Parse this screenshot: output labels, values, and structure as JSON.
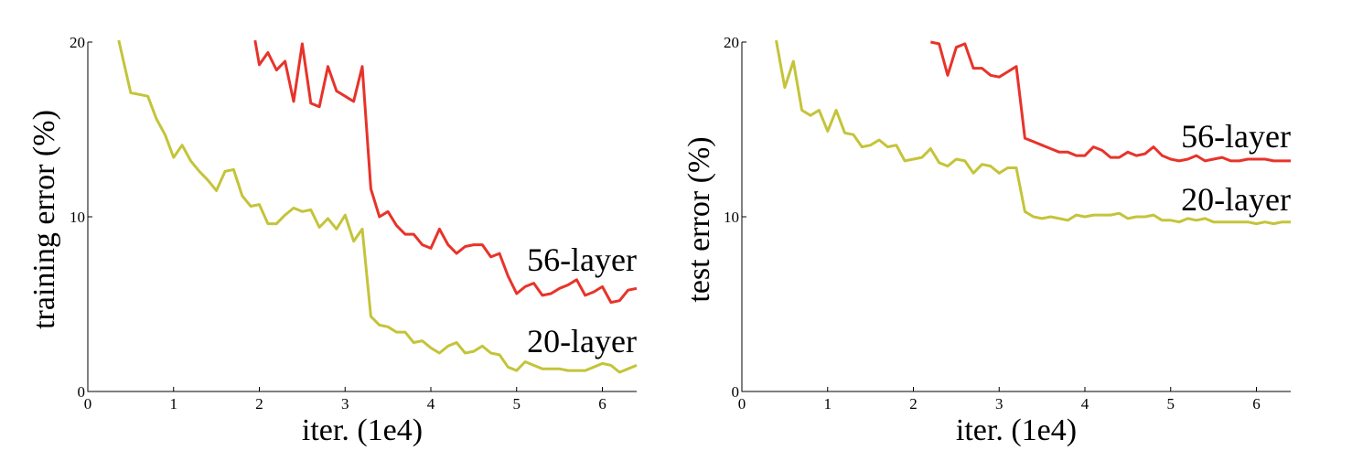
{
  "colors": {
    "layer56": "#e8332a",
    "layer20": "#c4c43a"
  },
  "chart_data": [
    {
      "type": "line",
      "xlabel": "iter. (1e4)",
      "ylabel": "training error (%)",
      "xlim": [
        0,
        6.4
      ],
      "ylim": [
        0,
        20
      ],
      "xticks": [
        "0",
        "1",
        "2",
        "3",
        "4",
        "5",
        "6"
      ],
      "yticks": [
        "0",
        "10",
        "20"
      ],
      "grid": false,
      "series": [
        {
          "name": "56-layer",
          "color_key": "layer56",
          "x": [
            1.95,
            2.0,
            2.1,
            2.2,
            2.3,
            2.4,
            2.5,
            2.6,
            2.7,
            2.8,
            2.9,
            3.0,
            3.1,
            3.2,
            3.3,
            3.4,
            3.5,
            3.6,
            3.7,
            3.8,
            3.9,
            4.0,
            4.1,
            4.2,
            4.3,
            4.4,
            4.5,
            4.6,
            4.7,
            4.8,
            4.9,
            5.0,
            5.1,
            5.2,
            5.3,
            5.4,
            5.5,
            5.6,
            5.7,
            5.8,
            5.9,
            6.0,
            6.1,
            6.2,
            6.3,
            6.4
          ],
          "y": [
            20.1,
            18.7,
            19.4,
            18.4,
            18.9,
            16.6,
            19.9,
            16.5,
            16.3,
            18.6,
            17.2,
            16.9,
            16.6,
            18.6,
            11.6,
            10.0,
            10.3,
            9.5,
            9.0,
            9.0,
            8.4,
            8.2,
            9.3,
            8.4,
            7.9,
            8.3,
            8.4,
            8.4,
            7.7,
            7.9,
            6.6,
            5.6,
            6.0,
            6.2,
            5.5,
            5.6,
            5.9,
            6.1,
            6.4,
            5.5,
            5.7,
            6.0,
            5.1,
            5.2,
            5.8,
            5.9
          ]
        },
        {
          "name": "20-layer",
          "color_key": "layer20",
          "x": [
            0.36,
            0.5,
            0.6,
            0.7,
            0.8,
            0.9,
            1.0,
            1.1,
            1.2,
            1.3,
            1.4,
            1.5,
            1.6,
            1.7,
            1.8,
            1.9,
            2.0,
            2.1,
            2.2,
            2.3,
            2.4,
            2.5,
            2.6,
            2.7,
            2.8,
            2.9,
            3.0,
            3.1,
            3.2,
            3.3,
            3.4,
            3.5,
            3.6,
            3.7,
            3.8,
            3.9,
            4.0,
            4.1,
            4.2,
            4.3,
            4.4,
            4.5,
            4.6,
            4.7,
            4.8,
            4.9,
            5.0,
            5.1,
            5.2,
            5.3,
            5.4,
            5.5,
            5.6,
            5.7,
            5.8,
            5.9,
            6.0,
            6.1,
            6.2,
            6.3,
            6.4
          ],
          "y": [
            20.1,
            17.1,
            17.0,
            16.9,
            15.6,
            14.7,
            13.4,
            14.1,
            13.2,
            12.6,
            12.1,
            11.5,
            12.6,
            12.7,
            11.2,
            10.6,
            10.7,
            9.6,
            9.6,
            10.1,
            10.5,
            10.3,
            10.4,
            9.4,
            9.9,
            9.3,
            10.1,
            8.6,
            9.3,
            4.3,
            3.8,
            3.7,
            3.4,
            3.4,
            2.8,
            2.9,
            2.5,
            2.2,
            2.6,
            2.8,
            2.2,
            2.3,
            2.6,
            2.2,
            2.1,
            1.4,
            1.2,
            1.7,
            1.5,
            1.3,
            1.3,
            1.3,
            1.2,
            1.2,
            1.2,
            1.4,
            1.6,
            1.5,
            1.1,
            1.3,
            1.5
          ]
        }
      ]
    },
    {
      "type": "line",
      "xlabel": "iter. (1e4)",
      "ylabel": "test error (%)",
      "xlim": [
        0,
        6.4
      ],
      "ylim": [
        0,
        20
      ],
      "xticks": [
        "0",
        "1",
        "2",
        "3",
        "4",
        "5",
        "6"
      ],
      "yticks": [
        "0",
        "10",
        "20"
      ],
      "grid": false,
      "series": [
        {
          "name": "56-layer",
          "color_key": "layer56",
          "x": [
            2.2,
            2.3,
            2.4,
            2.5,
            2.6,
            2.7,
            2.8,
            2.9,
            3.0,
            3.1,
            3.2,
            3.3,
            3.4,
            3.5,
            3.6,
            3.7,
            3.8,
            3.9,
            4.0,
            4.1,
            4.2,
            4.3,
            4.4,
            4.5,
            4.6,
            4.7,
            4.8,
            4.9,
            5.0,
            5.1,
            5.2,
            5.3,
            5.4,
            5.5,
            5.6,
            5.7,
            5.8,
            5.9,
            6.0,
            6.1,
            6.2,
            6.3,
            6.4
          ],
          "y": [
            20.0,
            19.9,
            18.1,
            19.7,
            19.9,
            18.5,
            18.5,
            18.1,
            18.0,
            18.3,
            18.6,
            14.5,
            14.3,
            14.1,
            13.9,
            13.7,
            13.7,
            13.5,
            13.5,
            14.0,
            13.8,
            13.4,
            13.4,
            13.7,
            13.5,
            13.6,
            14.0,
            13.5,
            13.3,
            13.2,
            13.3,
            13.5,
            13.2,
            13.3,
            13.4,
            13.2,
            13.2,
            13.3,
            13.3,
            13.3,
            13.2,
            13.2,
            13.2
          ]
        },
        {
          "name": "20-layer",
          "color_key": "layer20",
          "x": [
            0.4,
            0.5,
            0.6,
            0.7,
            0.8,
            0.9,
            1.0,
            1.1,
            1.2,
            1.3,
            1.4,
            1.5,
            1.6,
            1.7,
            1.8,
            1.9,
            2.0,
            2.1,
            2.2,
            2.3,
            2.4,
            2.5,
            2.6,
            2.7,
            2.8,
            2.9,
            3.0,
            3.1,
            3.2,
            3.3,
            3.4,
            3.5,
            3.6,
            3.7,
            3.8,
            3.9,
            4.0,
            4.1,
            4.2,
            4.3,
            4.4,
            4.5,
            4.6,
            4.7,
            4.8,
            4.9,
            5.0,
            5.1,
            5.2,
            5.3,
            5.4,
            5.5,
            5.6,
            5.7,
            5.8,
            5.9,
            6.0,
            6.1,
            6.2,
            6.3,
            6.4
          ],
          "y": [
            20.1,
            17.4,
            18.9,
            16.1,
            15.8,
            16.1,
            14.9,
            16.1,
            14.8,
            14.7,
            14.0,
            14.1,
            14.4,
            14.0,
            14.1,
            13.2,
            13.3,
            13.4,
            13.9,
            13.1,
            12.9,
            13.3,
            13.2,
            12.5,
            13.0,
            12.9,
            12.5,
            12.8,
            12.8,
            10.3,
            10.0,
            9.9,
            10.0,
            9.9,
            9.8,
            10.1,
            10.0,
            10.1,
            10.1,
            10.1,
            10.2,
            9.9,
            10.0,
            10.0,
            10.1,
            9.8,
            9.8,
            9.7,
            9.9,
            9.8,
            9.9,
            9.7,
            9.7,
            9.7,
            9.7,
            9.7,
            9.6,
            9.7,
            9.6,
            9.7,
            9.7
          ]
        }
      ]
    }
  ]
}
